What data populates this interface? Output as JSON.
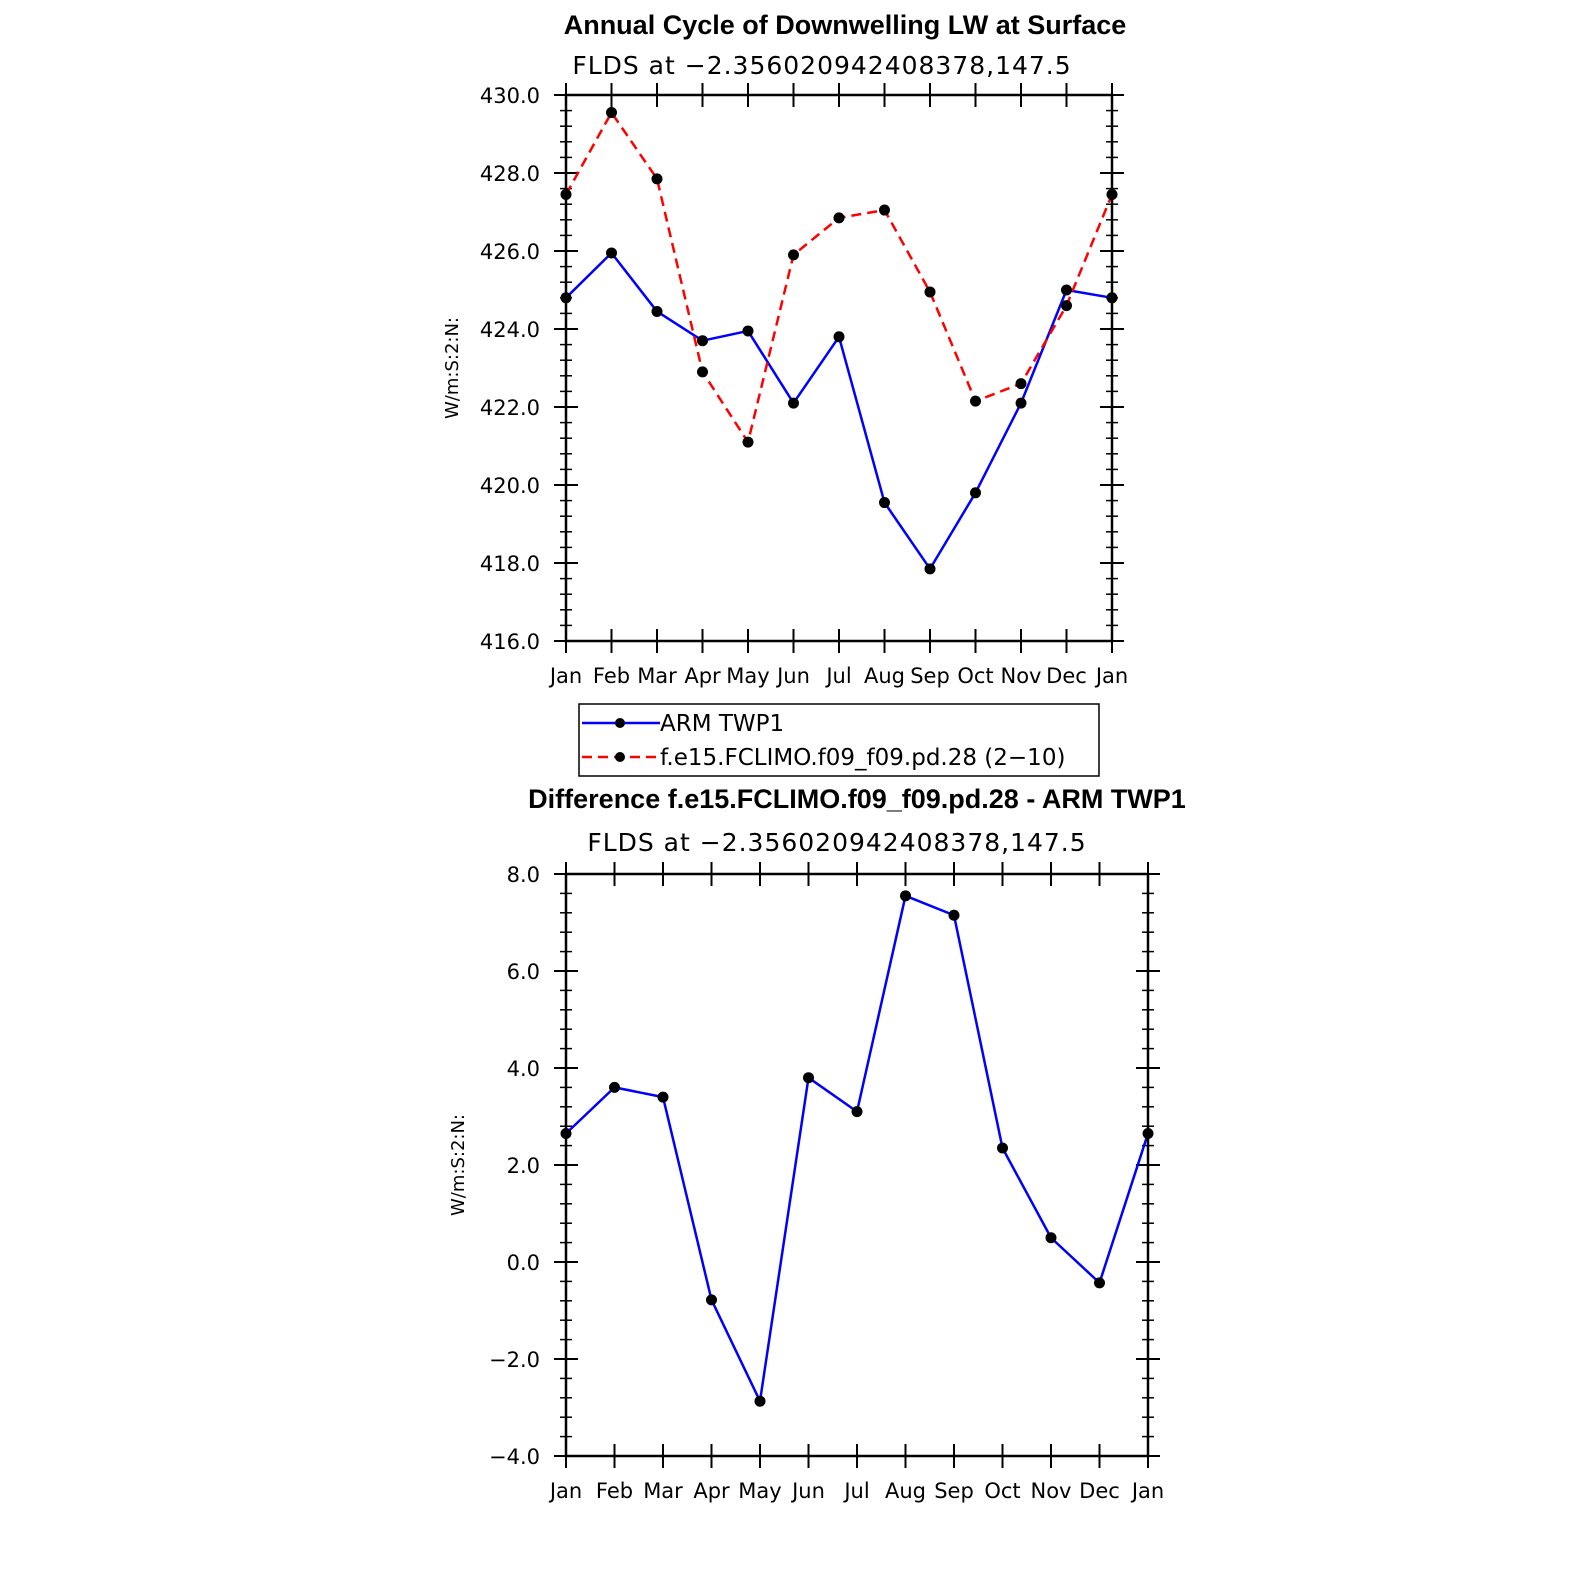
{
  "chart_data": [
    {
      "type": "line",
      "title": "Annual Cycle of Downwelling LW at Surface",
      "subtitle": "FLDS at −2.356020942408378,147.5",
      "ylabel": "W/m:S:2:N:",
      "xlabel": "",
      "categories": [
        "Jan",
        "Feb",
        "Mar",
        "Apr",
        "May",
        "Jun",
        "Jul",
        "Aug",
        "Sep",
        "Oct",
        "Nov",
        "Dec",
        "Jan"
      ],
      "ylim": [
        416,
        430
      ],
      "yticks": [
        "416.0",
        "418.0",
        "420.0",
        "422.0",
        "424.0",
        "426.0",
        "428.0",
        "430.0"
      ],
      "grid": false,
      "legend_position": "bottom",
      "series": [
        {
          "name": "ARM TWP1",
          "color": "#0000ff",
          "dash": "solid",
          "values": [
            424.8,
            425.95,
            424.45,
            423.7,
            423.95,
            422.1,
            423.8,
            419.55,
            417.85,
            419.8,
            422.1,
            425.0,
            424.8
          ]
        },
        {
          "name": "f.e15.FCLIMO.f09_f09.pd.28 (2−10)",
          "color": "#ff0000",
          "dash": "dashed",
          "values": [
            427.45,
            429.55,
            427.85,
            422.9,
            421.1,
            425.9,
            426.85,
            427.05,
            424.95,
            422.15,
            422.6,
            424.6,
            427.45
          ]
        }
      ]
    },
    {
      "type": "line",
      "title": "Difference f.e15.FCLIMO.f09_f09.pd.28 - ARM TWP1",
      "subtitle": "FLDS at −2.356020942408378,147.5",
      "ylabel": "W/m:S:2:N:",
      "xlabel": "",
      "categories": [
        "Jan",
        "Feb",
        "Mar",
        "Apr",
        "May",
        "Jun",
        "Jul",
        "Aug",
        "Sep",
        "Oct",
        "Nov",
        "Dec",
        "Jan"
      ],
      "ylim": [
        -4,
        8
      ],
      "yticks": [
        "−4.0",
        "−2.0",
        "0.0",
        "2.0",
        "4.0",
        "6.0",
        "8.0"
      ],
      "grid": false,
      "series": [
        {
          "color": "#0000ff",
          "dash": "solid",
          "values": [
            2.65,
            3.6,
            3.4,
            -0.78,
            -2.87,
            3.8,
            3.1,
            7.55,
            7.15,
            2.35,
            0.5,
            -0.43,
            2.65
          ]
        }
      ]
    }
  ]
}
